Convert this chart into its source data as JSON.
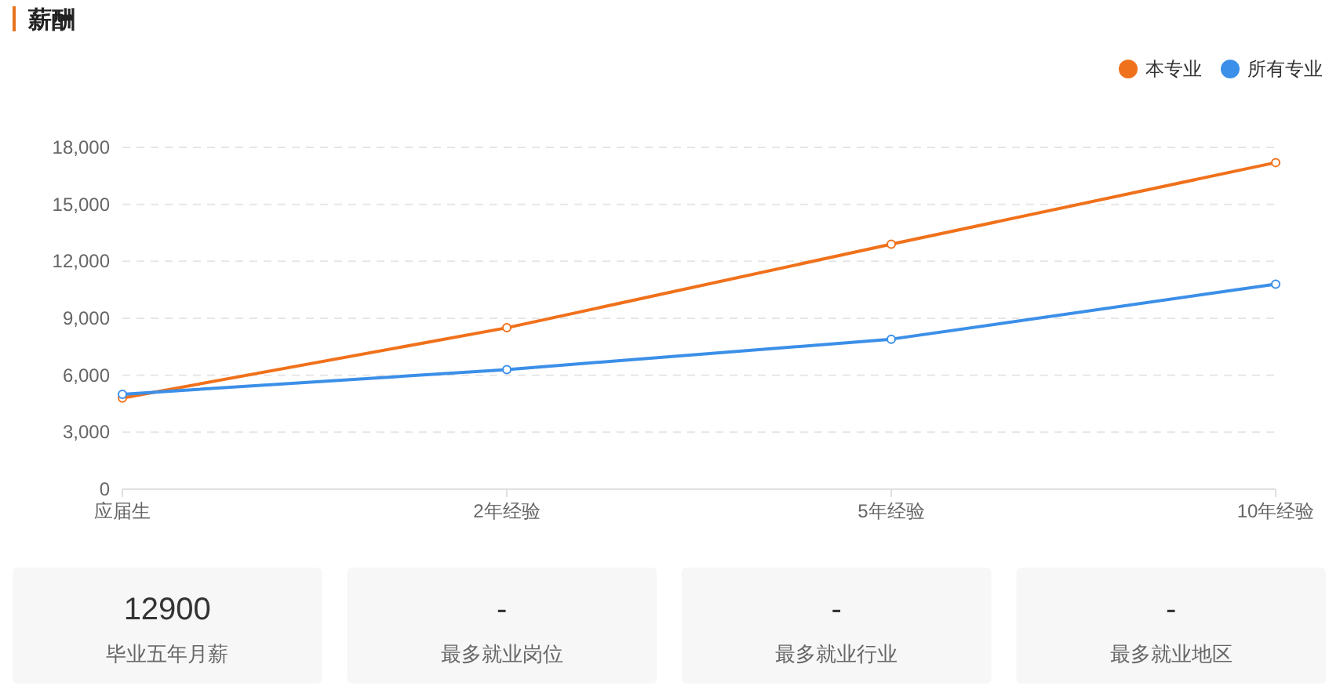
{
  "chart_data": [
    {
      "type": "line",
      "title": "薪酬",
      "categories": [
        "应届生",
        "2年经验",
        "5年经验",
        "10年经验"
      ],
      "series": [
        {
          "name": "本专业",
          "color": "#f0711b",
          "values": [
            4800,
            8500,
            12900,
            17200
          ]
        },
        {
          "name": "所有专业",
          "color": "#3b8fe8",
          "values": [
            5000,
            6300,
            7900,
            10800
          ]
        }
      ],
      "ylim": [
        0,
        18000
      ],
      "yticks": [
        0,
        {
          "value": 3000,
          "label": "3,000"
        },
        {
          "value": 6000,
          "label": "6,000"
        },
        {
          "value": 9000,
          "label": "9,000"
        },
        {
          "value": 12000,
          "label": "12,000"
        },
        {
          "value": 15000,
          "label": "15,000"
        },
        {
          "value": 18000,
          "label": "18,000"
        }
      ],
      "grid": "y",
      "legend": "top right",
      "marker": "circle",
      "line_style": "solid"
    },
    {
      "type": "other",
      "annotations": [
        "12900",
        "毕业五年月薪",
        "-",
        "最多就业岗位",
        "-",
        "最多就业行业",
        "-",
        "最多就业地区"
      ]
    }
  ]
}
